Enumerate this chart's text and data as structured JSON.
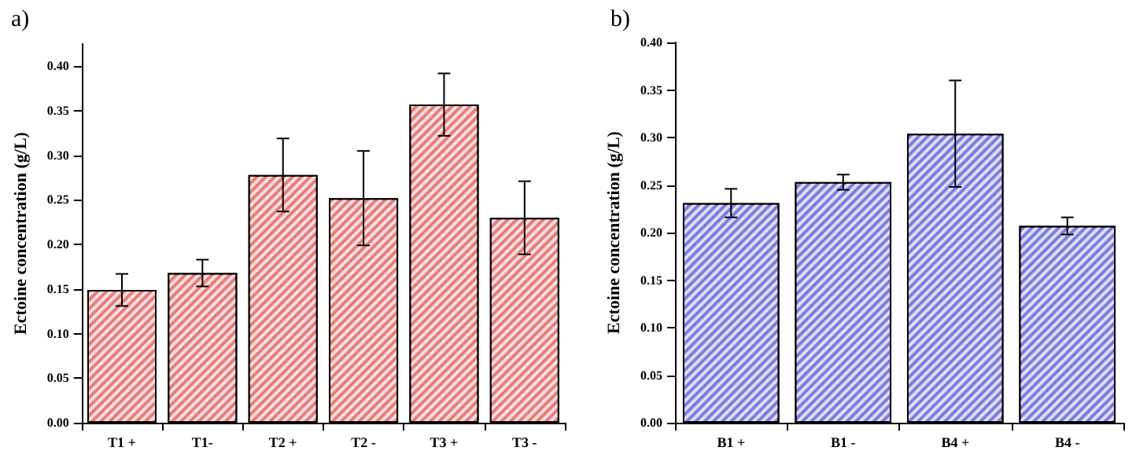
{
  "chart_data": [
    {
      "type": "bar",
      "title": "a)",
      "ylabel": "Ectoine concentration (g/L)",
      "categories": [
        "T1 +",
        "T1-",
        "T2 +",
        "T2 -",
        "T3 +",
        "T3 -"
      ],
      "values": [
        0.149,
        0.168,
        0.278,
        0.252,
        0.357,
        0.23
      ],
      "errors": [
        0.018,
        0.015,
        0.041,
        0.053,
        0.035,
        0.041
      ],
      "color": "#e77c7c",
      "ylim": [
        0,
        0.425
      ],
      "yticks": [
        {
          "value": 0,
          "label": "0.00"
        },
        {
          "value": 0.05,
          "label": "0.05"
        },
        {
          "value": 0.1,
          "label": "0.10"
        },
        {
          "value": 0.15,
          "label": "0.15"
        },
        {
          "value": 0.2,
          "label": "0.20"
        },
        {
          "value": 0.25,
          "label": "0.25"
        },
        {
          "value": 0.3,
          "label": "0.30"
        },
        {
          "value": 0.35,
          "label": "0.35"
        },
        {
          "value": 0.4,
          "label": "0.40"
        }
      ],
      "grid": false
    },
    {
      "type": "bar",
      "title": "b)",
      "ylabel": "Ectoine concentration (g/L)",
      "categories": [
        "B1 +",
        "B1 -",
        "B4 +",
        "B4 -"
      ],
      "values": [
        0.231,
        0.253,
        0.304,
        0.207
      ],
      "errors": [
        0.015,
        0.008,
        0.056,
        0.009
      ],
      "color": "#7c7ce0",
      "ylim": [
        0,
        0.4
      ],
      "yticks": [
        {
          "value": 0,
          "label": "0.00"
        },
        {
          "value": 0.05,
          "label": "0.05"
        },
        {
          "value": 0.1,
          "label": "0.10"
        },
        {
          "value": 0.15,
          "label": "0.15"
        },
        {
          "value": 0.2,
          "label": "0.20"
        },
        {
          "value": 0.25,
          "label": "0.25"
        },
        {
          "value": 0.3,
          "label": "0.30"
        },
        {
          "value": 0.35,
          "label": "0.35"
        },
        {
          "value": 0.4,
          "label": "0.40"
        }
      ],
      "grid": false
    }
  ]
}
